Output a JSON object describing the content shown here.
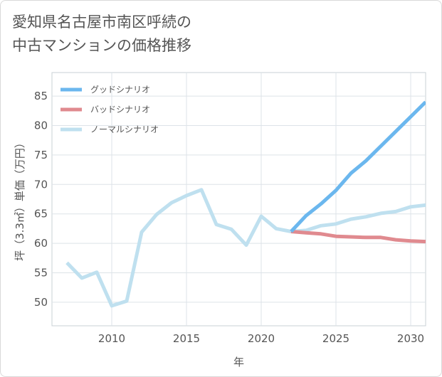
{
  "title_line1": "愛知県名古屋市南区呼続の",
  "title_line2": "中古マンションの価格推移",
  "chart_data": {
    "type": "line",
    "title": "愛知県名古屋市南区呼続の中古マンションの価格推移",
    "xlabel": "年",
    "ylabel": "坪（3.3㎡）単価（万円）",
    "xlim": [
      2006,
      2031
    ],
    "ylim": [
      46,
      89
    ],
    "xticks": [
      2010,
      2015,
      2020,
      2025,
      2030
    ],
    "yticks": [
      50,
      55,
      60,
      65,
      70,
      75,
      80,
      85
    ],
    "grid": true,
    "legend_position": "top-left",
    "series": [
      {
        "name": "グッドシナリオ",
        "color": "#6bb7ee",
        "x": [
          2022,
          2023,
          2024,
          2025,
          2026,
          2027,
          2028,
          2029,
          2030,
          2031
        ],
        "values": [
          62.0,
          64.7,
          66.7,
          69.0,
          71.9,
          74.0,
          76.5,
          79.0,
          81.5,
          84.0
        ]
      },
      {
        "name": "バッドシナリオ",
        "color": "#e08a8f",
        "x": [
          2022,
          2023,
          2024,
          2025,
          2026,
          2027,
          2028,
          2029,
          2030,
          2031
        ],
        "values": [
          62.0,
          61.8,
          61.6,
          61.2,
          61.1,
          61.0,
          61.0,
          60.6,
          60.4,
          60.3
        ]
      },
      {
        "name": "ノーマルシナリオ",
        "color": "#bfe0ef",
        "x": [
          2007,
          2008,
          2009,
          2010,
          2011,
          2012,
          2013,
          2014,
          2015,
          2016,
          2017,
          2018,
          2019,
          2020,
          2021,
          2022,
          2023,
          2024,
          2025,
          2026,
          2027,
          2028,
          2029,
          2030,
          2031
        ],
        "values": [
          56.7,
          54.1,
          55.1,
          49.4,
          50.2,
          61.9,
          64.9,
          66.9,
          68.1,
          69.1,
          63.2,
          62.4,
          59.7,
          64.6,
          62.5,
          62.0,
          62.2,
          63.0,
          63.3,
          64.1,
          64.5,
          65.1,
          65.4,
          66.2,
          66.5
        ]
      }
    ]
  }
}
